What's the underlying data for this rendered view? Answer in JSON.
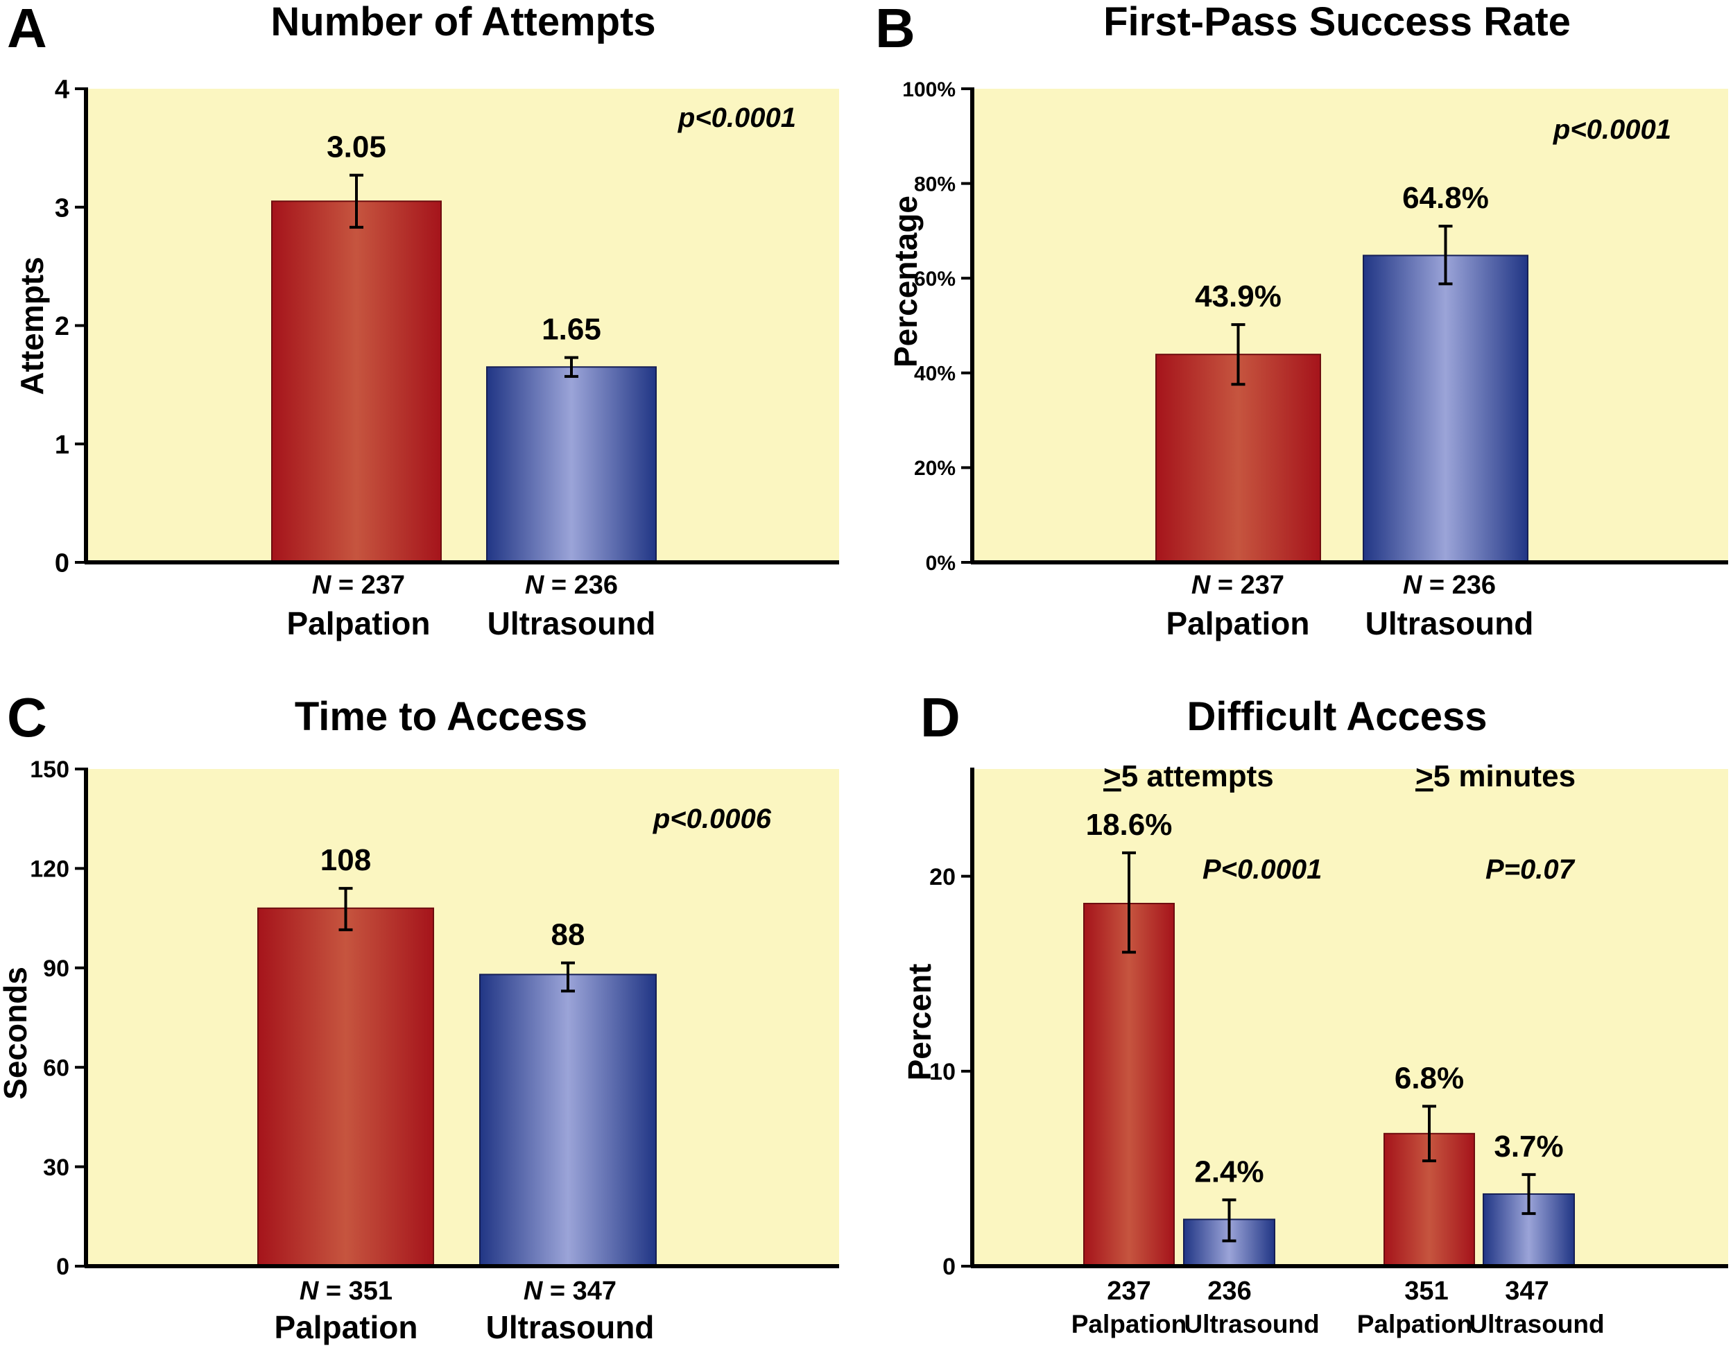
{
  "colors": {
    "plot_bg": "#FBF6C1",
    "palpation_dark": "#A5141B",
    "palpation_light": "#C6553F",
    "ultrasound_dark": "#213685",
    "ultrasound_light": "#9BA4D8",
    "axis": "#000000"
  },
  "chart_data": [
    {
      "id": "A",
      "letter": "A",
      "type": "bar",
      "title": "Number of Attempts",
      "ylabel": "Attempts",
      "ylim": [
        0,
        4
      ],
      "yticks": [
        0,
        1,
        2,
        3,
        4
      ],
      "yticklabels": [
        "0",
        "1",
        "2",
        "3",
        "4"
      ],
      "pvalue": "p<0.0001",
      "categories": [
        "Palpation",
        "Ultrasound"
      ],
      "n_labels": [
        {
          "prefix": "N",
          "rest": " = 237"
        },
        {
          "prefix": "N",
          "rest": " = 236"
        }
      ],
      "values": [
        3.05,
        1.65
      ],
      "value_labels": [
        "3.05",
        "1.65"
      ],
      "error": [
        [
          2.83,
          3.27
        ],
        [
          1.57,
          1.73
        ]
      ],
      "series": [
        "Palpation",
        "Ultrasound"
      ]
    },
    {
      "id": "B",
      "letter": "B",
      "type": "bar",
      "title": "First-Pass Success Rate",
      "ylabel": "Percentage",
      "ylim": [
        0,
        100
      ],
      "yticks": [
        0,
        20,
        40,
        60,
        80,
        100
      ],
      "yticklabels": [
        "0%",
        "20%",
        "40%",
        "60%",
        "80%",
        "100%"
      ],
      "pvalue": "p<0.0001",
      "categories": [
        "Palpation",
        "Ultrasound"
      ],
      "n_labels": [
        {
          "prefix": "N",
          "rest": " = 237"
        },
        {
          "prefix": "N",
          "rest": " = 236"
        }
      ],
      "values": [
        43.9,
        64.8
      ],
      "value_labels": [
        "43.9%",
        "64.8%"
      ],
      "error": [
        [
          37.6,
          50.2
        ],
        [
          58.8,
          71.0
        ]
      ],
      "series": [
        "Palpation",
        "Ultrasound"
      ]
    },
    {
      "id": "C",
      "letter": "C",
      "type": "bar",
      "title": "Time to Access",
      "ylabel": "Seconds",
      "ylim": [
        0,
        150
      ],
      "yticks": [
        0,
        30,
        60,
        90,
        120,
        150
      ],
      "yticklabels": [
        "0",
        "30",
        "60",
        "90",
        "120",
        "150"
      ],
      "pvalue": "p<0.0006",
      "categories": [
        "Palpation",
        "Ultrasound"
      ],
      "n_labels": [
        {
          "prefix": "N",
          "rest": " = 351"
        },
        {
          "prefix": "N",
          "rest": " = 347"
        }
      ],
      "values": [
        108,
        88
      ],
      "value_labels": [
        "108",
        "88"
      ],
      "error": [
        [
          101.5,
          114.0
        ],
        [
          83.0,
          91.5
        ]
      ],
      "series": [
        "Palpation",
        "Ultrasound"
      ]
    },
    {
      "id": "D",
      "letter": "D",
      "type": "bar",
      "title": "Difficult Access",
      "ylabel": "Percent",
      "ylim": [
        0,
        25.5
      ],
      "yticks": [
        0,
        10,
        20
      ],
      "yticklabels": [
        "0",
        "10",
        "20"
      ],
      "groups": [
        {
          "label_prefix": ">",
          "label_rest": "5 attempts",
          "pvalue": "P<0.0001",
          "categories": [
            "Palpation",
            "Ultrasound"
          ],
          "n_labels": [
            "237",
            "236"
          ],
          "values": [
            18.6,
            2.4
          ],
          "value_labels": [
            "18.6%",
            "2.4%"
          ],
          "error": [
            [
              16.1,
              21.2
            ],
            [
              1.3,
              3.4
            ]
          ]
        },
        {
          "label_prefix": ">",
          "label_rest": "5 minutes",
          "pvalue": "P=0.07",
          "categories": [
            "Palpation",
            "Ultrasound"
          ],
          "n_labels": [
            "351",
            "347"
          ],
          "values": [
            6.8,
            3.7
          ],
          "value_labels": [
            "6.8%",
            "3.7%"
          ],
          "error": [
            [
              5.4,
              8.2
            ],
            [
              2.7,
              4.7
            ]
          ]
        }
      ],
      "series": [
        "Palpation",
        "Ultrasound"
      ]
    }
  ]
}
